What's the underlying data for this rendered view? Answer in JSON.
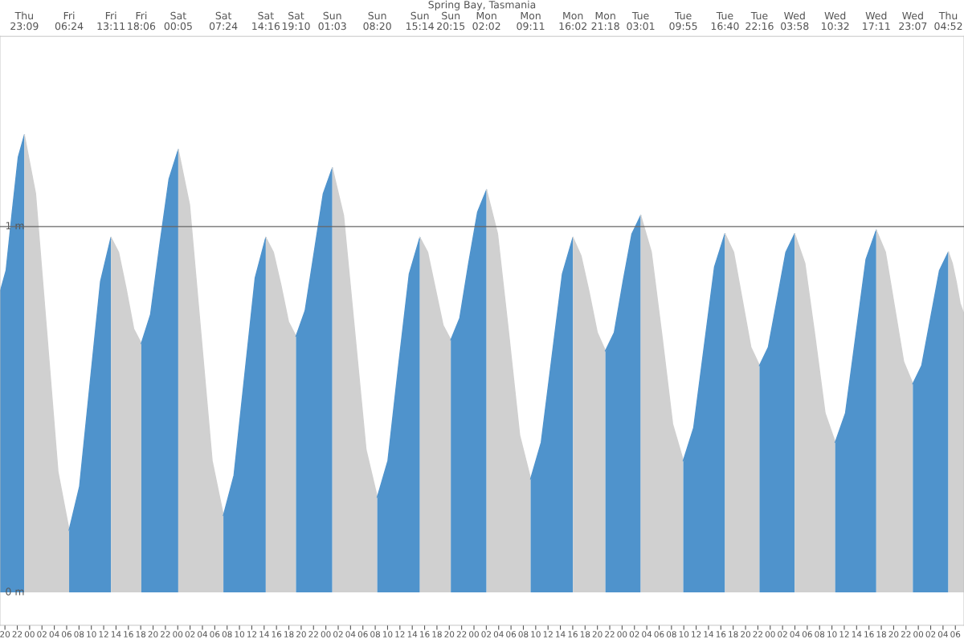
{
  "chart_data": {
    "type": "area",
    "title": "Spring Bay, Tasmania",
    "series": [
      {
        "color": "#4f93cc",
        "x": [
          19.2,
          20.19,
          21.18,
          22.16,
          23.15
        ],
        "values": [
          0.82,
          0.88,
          1.04,
          1.19,
          1.25
        ]
      },
      {
        "color": "#d0d0d0",
        "x": [
          23.15,
          24.96,
          26.78,
          28.59,
          30.4
        ],
        "values": [
          1.25,
          1.09,
          0.71,
          0.33,
          0.17
        ]
      },
      {
        "color": "#4f93cc",
        "x": [
          30.4,
          32.1,
          33.79,
          35.49,
          37.183
        ],
        "values": [
          0.17,
          0.29,
          0.57,
          0.85,
          0.97
        ]
      },
      {
        "color": "#d0d0d0",
        "x": [
          37.183,
          38.41,
          39.64,
          40.87,
          42.1
        ],
        "values": [
          0.97,
          0.93,
          0.83,
          0.72,
          0.68
        ]
      },
      {
        "color": "#4f93cc",
        "x": [
          42.1,
          43.6,
          45.09,
          46.59,
          48.083
        ],
        "values": [
          0.68,
          0.76,
          0.95,
          1.13,
          1.21
        ]
      },
      {
        "color": "#d0d0d0",
        "x": [
          48.083,
          49.91,
          51.74,
          53.57,
          55.4
        ],
        "values": [
          1.21,
          1.06,
          0.71,
          0.36,
          0.21
        ]
      },
      {
        "color": "#4f93cc",
        "x": [
          55.4,
          57.12,
          58.83,
          60.55,
          62.267
        ],
        "values": [
          0.21,
          0.32,
          0.59,
          0.86,
          0.97
        ]
      },
      {
        "color": "#d0d0d0",
        "x": [
          62.267,
          63.49,
          64.72,
          65.94,
          67.167
        ],
        "values": [
          0.97,
          0.93,
          0.84,
          0.74,
          0.7
        ]
      },
      {
        "color": "#4f93cc",
        "x": [
          67.167,
          68.64,
          70.11,
          71.58,
          73.05
        ],
        "values": [
          0.7,
          0.77,
          0.93,
          1.09,
          1.16
        ]
      },
      {
        "color": "#d0d0d0",
        "x": [
          73.05,
          74.87,
          76.69,
          78.51,
          80.333
        ],
        "values": [
          1.16,
          1.03,
          0.71,
          0.39,
          0.26
        ]
      },
      {
        "color": "#4f93cc",
        "x": [
          80.333,
          82.06,
          83.78,
          85.51,
          87.233
        ],
        "values": [
          0.26,
          0.36,
          0.62,
          0.87,
          0.97
        ]
      },
      {
        "color": "#d0d0d0",
        "x": [
          87.233,
          88.49,
          89.74,
          91.0,
          92.25
        ],
        "values": [
          0.97,
          0.93,
          0.83,
          0.73,
          0.69
        ]
      },
      {
        "color": "#4f93cc",
        "x": [
          92.25,
          93.7,
          95.14,
          96.59,
          98.033
        ],
        "values": [
          0.69,
          0.75,
          0.9,
          1.04,
          1.1
        ]
      },
      {
        "color": "#d0d0d0",
        "x": [
          98.033,
          99.82,
          101.61,
          103.4,
          105.183
        ],
        "values": [
          1.1,
          0.98,
          0.71,
          0.43,
          0.31
        ]
      },
      {
        "color": "#4f93cc",
        "x": [
          105.183,
          106.9,
          108.61,
          110.32,
          112.033
        ],
        "values": [
          0.31,
          0.41,
          0.64,
          0.87,
          0.97
        ]
      },
      {
        "color": "#d0d0d0",
        "x": [
          112.033,
          113.35,
          114.67,
          115.98,
          117.3
        ],
        "values": [
          0.97,
          0.92,
          0.82,
          0.71,
          0.66
        ]
      },
      {
        "color": "#4f93cc",
        "x": [
          117.3,
          118.73,
          120.16,
          121.59,
          123.017
        ],
        "values": [
          0.66,
          0.71,
          0.85,
          0.98,
          1.03
        ]
      },
      {
        "color": "#d0d0d0",
        "x": [
          123.017,
          124.74,
          126.47,
          128.19,
          129.917
        ],
        "values": [
          1.03,
          0.93,
          0.7,
          0.46,
          0.36
        ]
      },
      {
        "color": "#4f93cc",
        "x": [
          129.917,
          131.6,
          133.29,
          134.98,
          136.667
        ],
        "values": [
          0.36,
          0.45,
          0.67,
          0.89,
          0.98
        ]
      },
      {
        "color": "#d0d0d0",
        "x": [
          136.667,
          138.07,
          139.47,
          140.87,
          142.267
        ],
        "values": [
          0.98,
          0.93,
          0.8,
          0.67,
          0.62
        ]
      },
      {
        "color": "#4f93cc",
        "x": [
          142.267,
          143.69,
          145.12,
          146.54,
          147.967
        ],
        "values": [
          0.62,
          0.67,
          0.8,
          0.93,
          0.98
        ]
      },
      {
        "color": "#d0d0d0",
        "x": [
          147.967,
          149.61,
          151.25,
          152.89,
          154.533
        ],
        "values": [
          0.98,
          0.9,
          0.7,
          0.49,
          0.41
        ]
      },
      {
        "color": "#4f93cc",
        "x": [
          154.533,
          156.2,
          157.86,
          159.52,
          161.183
        ],
        "values": [
          0.41,
          0.49,
          0.7,
          0.91,
          0.99
        ]
      },
      {
        "color": "#d0d0d0",
        "x": [
          161.183,
          162.67,
          164.15,
          165.63,
          167.117
        ],
        "values": [
          0.99,
          0.93,
          0.78,
          0.63,
          0.57
        ]
      },
      {
        "color": "#4f93cc",
        "x": [
          167.117,
          168.55,
          169.99,
          171.43,
          172.867
        ],
        "values": [
          0.57,
          0.62,
          0.75,
          0.88,
          0.93
        ]
      },
      {
        "color": "#d0d0d0",
        "x": [
          172.867,
          173.5,
          174.13,
          174.77,
          175.4
        ],
        "values": [
          0.93,
          0.9,
          0.85,
          0.79,
          0.76
        ]
      }
    ],
    "xlim": [
      19.2,
      175.4
    ],
    "xticks": [
      {
        "value": 20,
        "label": "20"
      },
      {
        "value": 22,
        "label": "22"
      },
      {
        "value": 24,
        "label": "00"
      },
      {
        "value": 26,
        "label": "02"
      },
      {
        "value": 28,
        "label": "04"
      },
      {
        "value": 30,
        "label": "06"
      },
      {
        "value": 32,
        "label": "08"
      },
      {
        "value": 34,
        "label": "10"
      },
      {
        "value": 36,
        "label": "12"
      },
      {
        "value": 38,
        "label": "14"
      },
      {
        "value": 40,
        "label": "16"
      },
      {
        "value": 42,
        "label": "18"
      },
      {
        "value": 44,
        "label": "20"
      },
      {
        "value": 46,
        "label": "22"
      },
      {
        "value": 48,
        "label": "00"
      },
      {
        "value": 50,
        "label": "02"
      },
      {
        "value": 52,
        "label": "04"
      },
      {
        "value": 54,
        "label": "06"
      },
      {
        "value": 56,
        "label": "08"
      },
      {
        "value": 58,
        "label": "10"
      },
      {
        "value": 60,
        "label": "12"
      },
      {
        "value": 62,
        "label": "14"
      },
      {
        "value": 64,
        "label": "16"
      },
      {
        "value": 66,
        "label": "18"
      },
      {
        "value": 68,
        "label": "20"
      },
      {
        "value": 70,
        "label": "22"
      },
      {
        "value": 72,
        "label": "00"
      },
      {
        "value": 74,
        "label": "02"
      },
      {
        "value": 76,
        "label": "04"
      },
      {
        "value": 78,
        "label": "06"
      },
      {
        "value": 80,
        "label": "08"
      },
      {
        "value": 82,
        "label": "10"
      },
      {
        "value": 84,
        "label": "12"
      },
      {
        "value": 86,
        "label": "14"
      },
      {
        "value": 88,
        "label": "16"
      },
      {
        "value": 90,
        "label": "18"
      },
      {
        "value": 92,
        "label": "20"
      },
      {
        "value": 94,
        "label": "22"
      },
      {
        "value": 96,
        "label": "00"
      },
      {
        "value": 98,
        "label": "02"
      },
      {
        "value": 100,
        "label": "04"
      },
      {
        "value": 102,
        "label": "06"
      },
      {
        "value": 104,
        "label": "08"
      },
      {
        "value": 106,
        "label": "10"
      },
      {
        "value": 108,
        "label": "12"
      },
      {
        "value": 110,
        "label": "14"
      },
      {
        "value": 112,
        "label": "16"
      },
      {
        "value": 114,
        "label": "18"
      },
      {
        "value": 116,
        "label": "20"
      },
      {
        "value": 118,
        "label": "22"
      },
      {
        "value": 120,
        "label": "00"
      },
      {
        "value": 122,
        "label": "02"
      },
      {
        "value": 124,
        "label": "04"
      },
      {
        "value": 126,
        "label": "06"
      },
      {
        "value": 128,
        "label": "08"
      },
      {
        "value": 130,
        "label": "10"
      },
      {
        "value": 132,
        "label": "12"
      },
      {
        "value": 134,
        "label": "14"
      },
      {
        "value": 136,
        "label": "16"
      },
      {
        "value": 138,
        "label": "18"
      },
      {
        "value": 140,
        "label": "20"
      },
      {
        "value": 142,
        "label": "22"
      },
      {
        "value": 144,
        "label": "00"
      },
      {
        "value": 146,
        "label": "02"
      },
      {
        "value": 148,
        "label": "04"
      },
      {
        "value": 150,
        "label": "06"
      },
      {
        "value": 152,
        "label": "08"
      },
      {
        "value": 154,
        "label": "10"
      },
      {
        "value": 156,
        "label": "12"
      },
      {
        "value": 158,
        "label": "14"
      },
      {
        "value": 160,
        "label": "16"
      },
      {
        "value": 162,
        "label": "18"
      },
      {
        "value": 164,
        "label": "20"
      },
      {
        "value": 166,
        "label": "22"
      },
      {
        "value": 168,
        "label": "00"
      },
      {
        "value": 170,
        "label": "02"
      },
      {
        "value": 172,
        "label": "04"
      },
      {
        "value": 174,
        "label": "06"
      }
    ],
    "annotations": [
      "Thu\n23:09",
      "Fri\n06:24",
      "Fri\n13:11",
      "Fri\n18:06",
      "Sat\n00:05",
      "Sat\n07:24",
      "Sat\n14:16",
      "Sat\n19:10",
      "Sun\n01:03",
      "Sun\n08:20",
      "Sun\n15:14",
      "Sun\n20:15",
      "Mon\n02:02",
      "Mon\n09:11",
      "Mon\n16:02",
      "Mon\n21:18",
      "Tue\n03:01",
      "Tue\n09:55",
      "Tue\n16:40",
      "Tue\n22:16",
      "Wed\n03:58",
      "Wed\n10:32",
      "Wed\n17:11",
      "Wed\n23:07",
      "Thu\n04:52"
    ],
    "ylim": [
      -0.09,
      1.52
    ],
    "yticks": [
      {
        "value": 0,
        "label": "0 m"
      },
      {
        "value": 1,
        "label": "1 m"
      }
    ],
    "ref_lines": [
      {
        "axis": "y",
        "value": 1,
        "color": "#666666"
      }
    ]
  }
}
